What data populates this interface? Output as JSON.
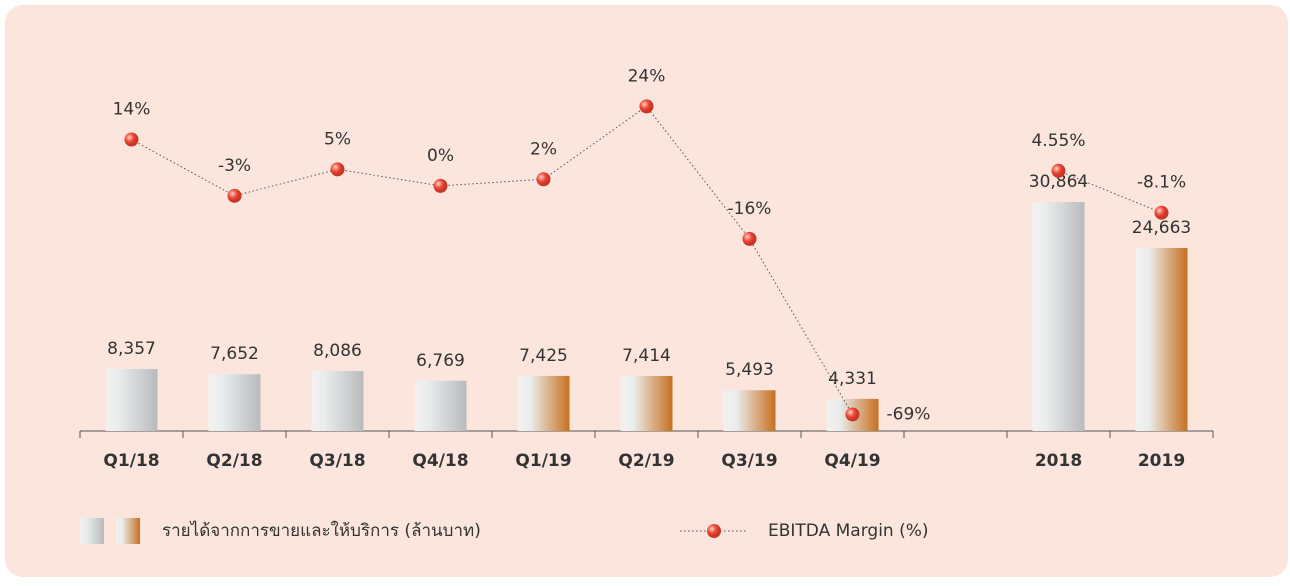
{
  "chart_data": {
    "type": "bar",
    "categories": [
      "Q1/18",
      "Q2/18",
      "Q3/18",
      "Q4/18",
      "Q1/19",
      "Q2/19",
      "Q3/19",
      "Q4/19",
      null,
      "2018",
      "2019"
    ],
    "series": [
      {
        "name": "รายได้จากการขายและให้บริการ (ล้านบาท)",
        "type": "bar",
        "values": [
          8357,
          7652,
          8086,
          6769,
          7425,
          7414,
          5493,
          4331,
          null,
          30864,
          24663
        ],
        "value_labels": [
          "8,357",
          "7,652",
          "8,086",
          "6,769",
          "7,425",
          "7,414",
          "5,493",
          "4,331",
          null,
          "30,864",
          "24,663"
        ],
        "colors": [
          "#b9babc",
          "#b9babc",
          "#b9babc",
          "#b9babc",
          "#c8701f",
          "#c8701f",
          "#c8701f",
          "#c8701f",
          null,
          "#b9babc",
          "#c8701f"
        ]
      },
      {
        "name": "EBITDA Margin (%)",
        "type": "line",
        "axis": "y2",
        "color": "#ef4b3a",
        "values": [
          14,
          -3,
          5,
          0,
          2,
          24,
          -16,
          -69,
          null,
          4.55,
          -8.1
        ],
        "value_labels": [
          "14%",
          "-3%",
          "5%",
          "0%",
          "2%",
          "24%",
          "-16%",
          "-69%",
          null,
          "4.55%",
          "-8.1%"
        ]
      }
    ],
    "ylim": [
      0,
      50000
    ],
    "y2lim": [
      -74,
      38
    ]
  }
}
